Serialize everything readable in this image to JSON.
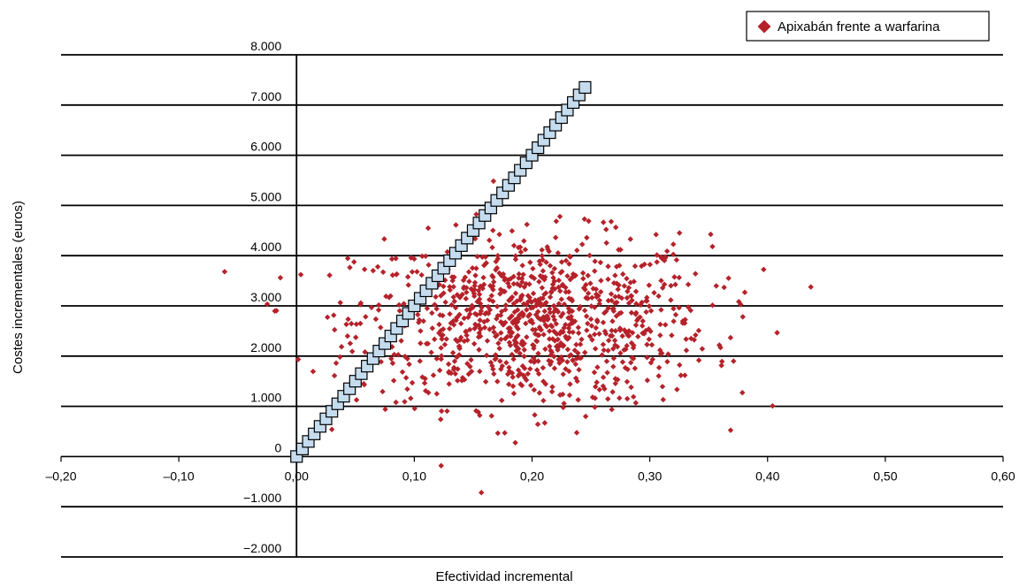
{
  "chart_data": {
    "type": "scatter",
    "xlabel": "Efectividad incremental",
    "ylabel": "Costes incrementales (euros)",
    "xlim": [
      -0.2,
      0.6
    ],
    "ylim": [
      -2000,
      8000
    ],
    "x_ticks": [
      "–0,20",
      "–0,10",
      "0,00",
      "0,10",
      "0,20",
      "0,30",
      "0,40",
      "0,50",
      "0,60"
    ],
    "y_ticks": [
      "−2.000",
      "−1.000",
      "0",
      "1.000",
      "2.000",
      "3.000",
      "4.000",
      "5.000",
      "6.000",
      "7.000",
      "8.000"
    ],
    "grid": true,
    "legend_position": "top-right",
    "series": [
      {
        "name": "Apixabán frente a warfarina",
        "marker": "diamond",
        "color": "#b5222a",
        "point_count": 1000,
        "cloud": {
          "x_mean": 0.2,
          "x_sd": 0.075,
          "y_mean": 2700,
          "y_sd": 850,
          "x_range": [
            -0.12,
            0.5
          ],
          "y_range": [
            -850,
            6100
          ]
        }
      }
    ],
    "threshold_line": {
      "marker": "square",
      "fill": "#c5dcef",
      "stroke": "#000000",
      "slope": 30000,
      "x": [
        0.0,
        0.005,
        0.01,
        0.015,
        0.02,
        0.025,
        0.03,
        0.035,
        0.04,
        0.045,
        0.05,
        0.055,
        0.06,
        0.065,
        0.07,
        0.075,
        0.08,
        0.085,
        0.09,
        0.095,
        0.1,
        0.105,
        0.11,
        0.115,
        0.12,
        0.125,
        0.13,
        0.135,
        0.14,
        0.145,
        0.15,
        0.155,
        0.16,
        0.165,
        0.17,
        0.175,
        0.18,
        0.185,
        0.19,
        0.195,
        0.2,
        0.205,
        0.21,
        0.215,
        0.22,
        0.225,
        0.23,
        0.235,
        0.24,
        0.245
      ],
      "y": [
        0,
        150,
        300,
        450,
        600,
        750,
        900,
        1050,
        1200,
        1350,
        1500,
        1650,
        1800,
        1950,
        2100,
        2250,
        2400,
        2550,
        2700,
        2850,
        3000,
        3150,
        3300,
        3450,
        3600,
        3750,
        3900,
        4050,
        4200,
        4350,
        4500,
        4650,
        4800,
        4950,
        5100,
        5250,
        5400,
        5550,
        5700,
        5850,
        6000,
        6150,
        6300,
        6450,
        6600,
        6750,
        6900,
        7050,
        7200,
        7350
      ]
    }
  }
}
